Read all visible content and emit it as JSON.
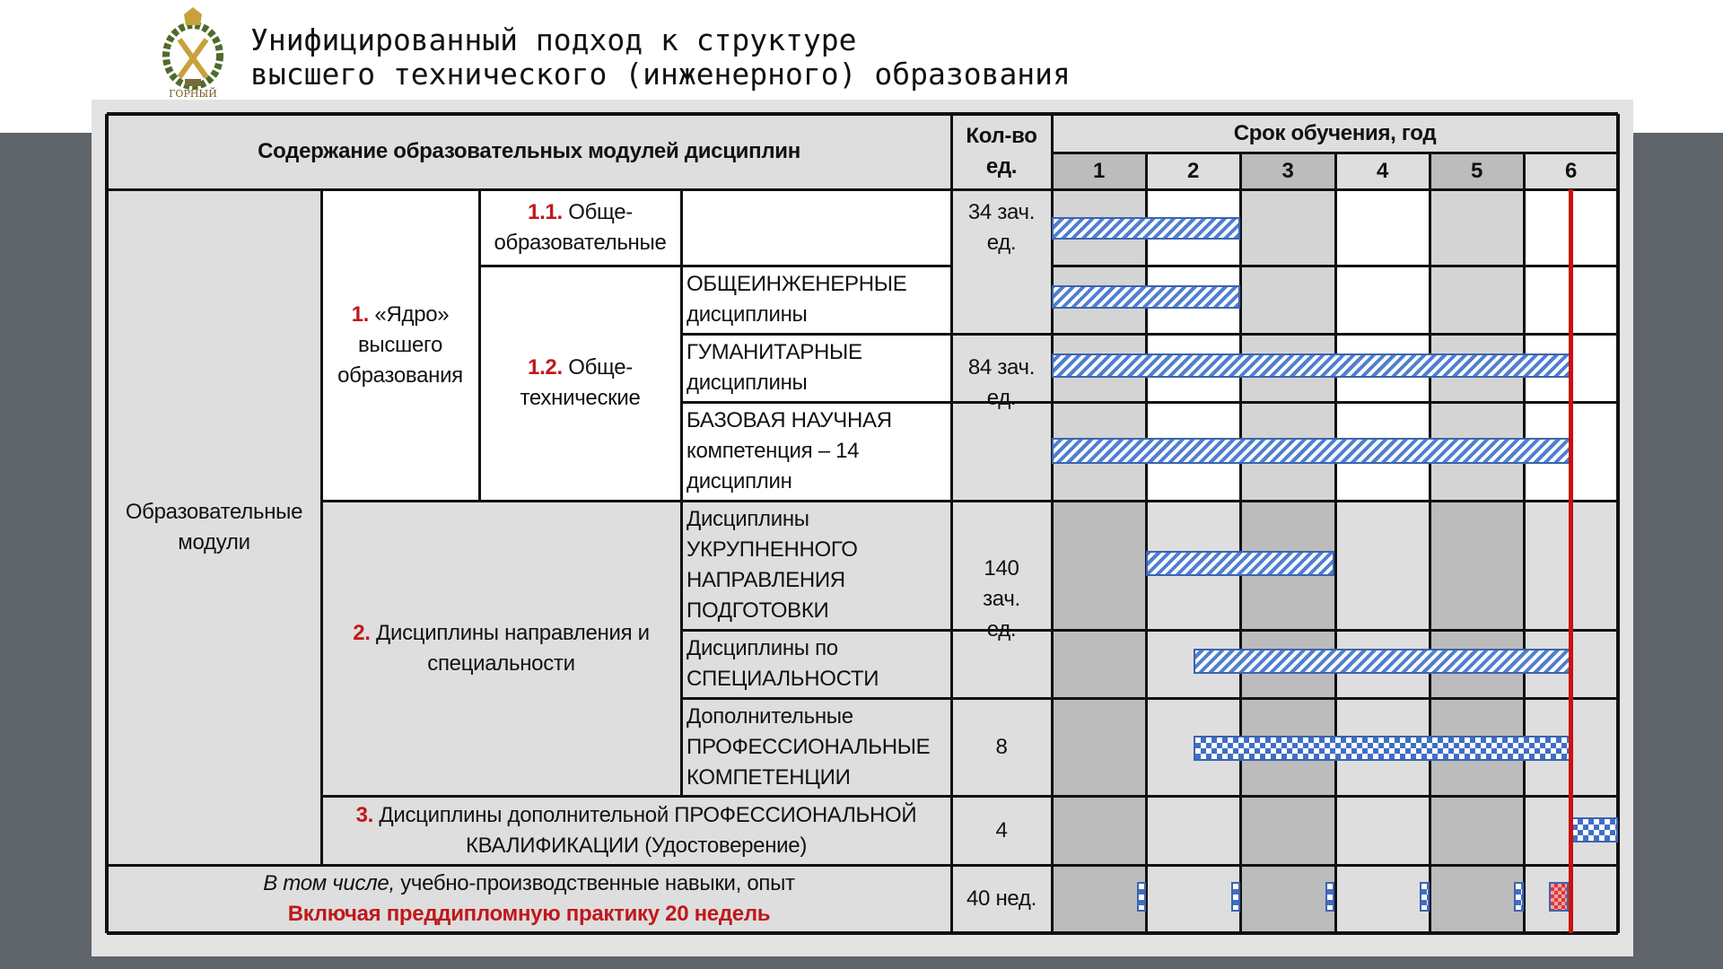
{
  "header": {
    "title_line1": "Унифицированный подход к структуре",
    "title_line2": "высшего технического (инженерного) образования",
    "logo_text": "ГОРНЫЙ"
  },
  "table": {
    "col_content": "Содержание образовательных модулей дисциплин",
    "col_count": "Кол-во ед.",
    "col_term": "Срок обучения, год",
    "years": [
      "1",
      "2",
      "3",
      "4",
      "5",
      "6"
    ],
    "modules": "Образовательные модули",
    "core_num": "1.",
    "core_label": "«Ядро» высшего образования",
    "gen_num": "1.1.",
    "gen_label": "Обще-образовательные",
    "tech_num": "1.2.",
    "tech_label": "Обще-технические",
    "sub_eng": "ОБЩЕИНЖЕНЕРНЫЕ дисциплины",
    "sub_hum": "ГУМАНИТАРНЫЕ дисциплины",
    "sub_sci": "БАЗОВАЯ НАУЧНАЯ компетенция – 14 дисциплин",
    "dir_num": "2.",
    "dir_label": "Дисциплины направления и специальности",
    "sub_enl": "Дисциплины УКРУПНЕННОГО НАПРАВЛЕНИЯ ПОДГОТОВКИ",
    "sub_spec": "Дисциплины по СПЕЦИАЛЬНОСТИ",
    "sub_add": "Дополнительные ПРОФЕССИОНАЛЬНЫЕ КОМПЕТЕНЦИИ",
    "qual_num": "3.",
    "qual_label": "Дисциплины дополнительной ПРОФЕССИОНАЛЬНОЙ КВАЛИФИКАЦИИ (Удостоверение)",
    "practice_italic": "В том числе,",
    "practice_text": " учебно-производственные навыки, опыт",
    "practice_red": "Включая преддипломную практику 20 недель",
    "counts": {
      "gen": "34 зач. ед.",
      "tech": "84 зач. ед.",
      "dir": "140 зач. ед.",
      "add": "8",
      "qual": "4",
      "practice": "40 нед."
    }
  },
  "bars": [
    {
      "row": "gen",
      "from": 0,
      "to": 2,
      "pattern": "hatch"
    },
    {
      "row": "eng",
      "from": 0,
      "to": 2,
      "pattern": "hatch"
    },
    {
      "row": "hum",
      "from": 0,
      "to": 5.5,
      "pattern": "hatch"
    },
    {
      "row": "sci",
      "from": 0,
      "to": 5.5,
      "pattern": "hatch"
    },
    {
      "row": "enl",
      "from": 1,
      "to": 3,
      "pattern": "hatch"
    },
    {
      "row": "spec",
      "from": 1.5,
      "to": 5.5,
      "pattern": "hatch"
    },
    {
      "row": "add",
      "from": 1.5,
      "to": 5.5,
      "pattern": "check"
    },
    {
      "row": "qual",
      "from": 5.5,
      "to": 6,
      "pattern": "check"
    },
    {
      "row": "practice",
      "from": 0.9,
      "to": 1,
      "pattern": "check"
    },
    {
      "row": "practice",
      "from": 1.9,
      "to": 2,
      "pattern": "check"
    },
    {
      "row": "practice",
      "from": 2.9,
      "to": 3,
      "pattern": "check"
    },
    {
      "row": "practice",
      "from": 3.9,
      "to": 4,
      "pattern": "check"
    },
    {
      "row": "practice",
      "from": 4.9,
      "to": 5,
      "pattern": "check"
    },
    {
      "row": "practice",
      "from": 5.27,
      "to": 5.48,
      "pattern": "checkred"
    }
  ],
  "colors": {
    "accent_red": "#c0181b",
    "bar_blue": "#3f6fc6",
    "deadline": "#c8120f"
  },
  "deadline_year": 5.5
}
